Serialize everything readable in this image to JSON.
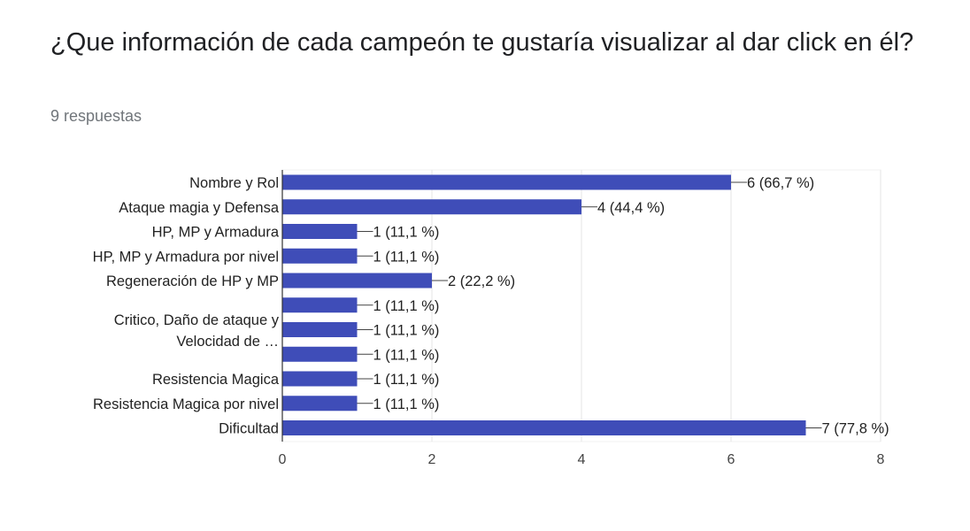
{
  "question": {
    "title": "¿Que información de cada campeón te gustaría visualizar al dar click en él?",
    "responses": "9 respuestas"
  },
  "chart_data": {
    "type": "bar",
    "orientation": "horizontal",
    "bar_color": "#3f4db8",
    "grid": true,
    "xlim": [
      0,
      8
    ],
    "x_ticks": [
      "0",
      "2",
      "4",
      "6",
      "8"
    ],
    "categories": [
      "Nombre y Rol",
      "Ataque magia y Defensa",
      "HP, MP y Armadura",
      "HP, MP y Armadura por nivel",
      "Regeneración de HP y MP",
      "",
      "",
      "",
      "Resistencia Magica",
      "Resistencia Magica por nivel",
      "Dificultad"
    ],
    "group_labels": [
      {
        "lines": [
          "Critico, Daño de ataque y",
          "Velocidad de …"
        ]
      }
    ],
    "values": [
      6,
      4,
      1,
      1,
      2,
      1,
      1,
      1,
      1,
      1,
      7
    ],
    "value_labels": [
      "6 (66,7 %)",
      "4 (44,4 %)",
      "1 (11,1 %)",
      "1 (11,1 %)",
      "2 (22,2 %)",
      "1 (11,1 %)",
      "1 (11,1 %)",
      "1 (11,1 %)",
      "1 (11,1 %)",
      "1 (11,1 %)",
      "7 (77,8 %)"
    ]
  }
}
